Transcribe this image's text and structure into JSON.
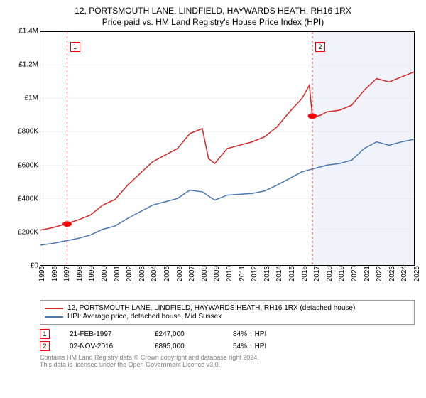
{
  "title": {
    "line1": "12, PORTSMOUTH LANE, LINDFIELD, HAYWARDS HEATH, RH16 1RX",
    "line2": "Price paid vs. HM Land Registry's House Price Index (HPI)"
  },
  "chart": {
    "type": "line",
    "background_color": "#ffffff",
    "grid_color": "#dcdcdc",
    "future_shade_color": "#f0f4fa",
    "y": {
      "min": 0,
      "max": 1400000,
      "step": 200000,
      "ticks": [
        {
          "v": 0,
          "label": "£0"
        },
        {
          "v": 200000,
          "label": "£200K"
        },
        {
          "v": 400000,
          "label": "£400K"
        },
        {
          "v": 600000,
          "label": "£600K"
        },
        {
          "v": 800000,
          "label": "£800K"
        },
        {
          "v": 1000000,
          "label": "£1M"
        },
        {
          "v": 1200000,
          "label": "£1.2M"
        },
        {
          "v": 1400000,
          "label": "£1.4M"
        }
      ]
    },
    "x": {
      "min": 1995,
      "max": 2025,
      "years": [
        1995,
        1996,
        1997,
        1998,
        1999,
        2000,
        2001,
        2002,
        2003,
        2004,
        2005,
        2006,
        2007,
        2008,
        2009,
        2010,
        2011,
        2012,
        2013,
        2014,
        2015,
        2016,
        2017,
        2018,
        2019,
        2020,
        2021,
        2022,
        2023,
        2024,
        2025
      ]
    },
    "series": [
      {
        "id": "property",
        "color": "#d62728",
        "label": "12, PORTSMOUTH LANE, LINDFIELD, HAYWARDS HEATH, RH16 1RX (detached house)",
        "data": [
          [
            1995,
            210000
          ],
          [
            1996,
            225000
          ],
          [
            1997,
            247000
          ],
          [
            1998,
            270000
          ],
          [
            1999,
            300000
          ],
          [
            2000,
            360000
          ],
          [
            2001,
            395000
          ],
          [
            2002,
            480000
          ],
          [
            2003,
            550000
          ],
          [
            2004,
            620000
          ],
          [
            2005,
            660000
          ],
          [
            2006,
            700000
          ],
          [
            2007,
            790000
          ],
          [
            2008,
            820000
          ],
          [
            2008.5,
            640000
          ],
          [
            2009,
            610000
          ],
          [
            2010,
            700000
          ],
          [
            2011,
            720000
          ],
          [
            2012,
            740000
          ],
          [
            2013,
            770000
          ],
          [
            2014,
            830000
          ],
          [
            2015,
            920000
          ],
          [
            2016,
            1000000
          ],
          [
            2016.6,
            1080000
          ],
          [
            2016.84,
            895000
          ],
          [
            2017,
            890000
          ],
          [
            2017.5,
            900000
          ],
          [
            2018,
            920000
          ],
          [
            2019,
            930000
          ],
          [
            2020,
            960000
          ],
          [
            2021,
            1050000
          ],
          [
            2022,
            1120000
          ],
          [
            2023,
            1100000
          ],
          [
            2024,
            1130000
          ],
          [
            2025,
            1160000
          ]
        ]
      },
      {
        "id": "hpi",
        "color": "#4a78b5",
        "label": "HPI: Average price, detached house, Mid Sussex",
        "data": [
          [
            1995,
            120000
          ],
          [
            1996,
            130000
          ],
          [
            1997,
            145000
          ],
          [
            1998,
            160000
          ],
          [
            1999,
            180000
          ],
          [
            2000,
            215000
          ],
          [
            2001,
            235000
          ],
          [
            2002,
            280000
          ],
          [
            2003,
            320000
          ],
          [
            2004,
            360000
          ],
          [
            2005,
            380000
          ],
          [
            2006,
            400000
          ],
          [
            2007,
            450000
          ],
          [
            2008,
            440000
          ],
          [
            2009,
            390000
          ],
          [
            2010,
            420000
          ],
          [
            2011,
            425000
          ],
          [
            2012,
            430000
          ],
          [
            2013,
            445000
          ],
          [
            2014,
            480000
          ],
          [
            2015,
            520000
          ],
          [
            2016,
            560000
          ],
          [
            2017,
            580000
          ],
          [
            2018,
            600000
          ],
          [
            2019,
            610000
          ],
          [
            2020,
            630000
          ],
          [
            2021,
            700000
          ],
          [
            2022,
            740000
          ],
          [
            2023,
            720000
          ],
          [
            2024,
            740000
          ],
          [
            2025,
            755000
          ]
        ]
      }
    ],
    "events": [
      {
        "n": "1",
        "date": "21-FEB-1997",
        "x": 1997.14,
        "price_v": 247000,
        "price": "£247,000",
        "delta": "84% ↑ HPI"
      },
      {
        "n": "2",
        "date": "02-NOV-2016",
        "x": 2016.84,
        "price_v": 895000,
        "price": "£895,000",
        "delta": "54% ↑ HPI"
      }
    ],
    "event_line_color": "#d62728",
    "event_box_border": "#ff0000"
  },
  "legend": [
    {
      "color": "#d62728",
      "text": "12, PORTSMOUTH LANE, LINDFIELD, HAYWARDS HEATH, RH16 1RX (detached house)"
    },
    {
      "color": "#4a78b5",
      "text": "HPI: Average price, detached house, Mid Sussex"
    }
  ],
  "footer": {
    "line1": "Contains HM Land Registry data © Crown copyright and database right 2024.",
    "line2": "This data is licensed under the Open Government Licence v3.0."
  }
}
